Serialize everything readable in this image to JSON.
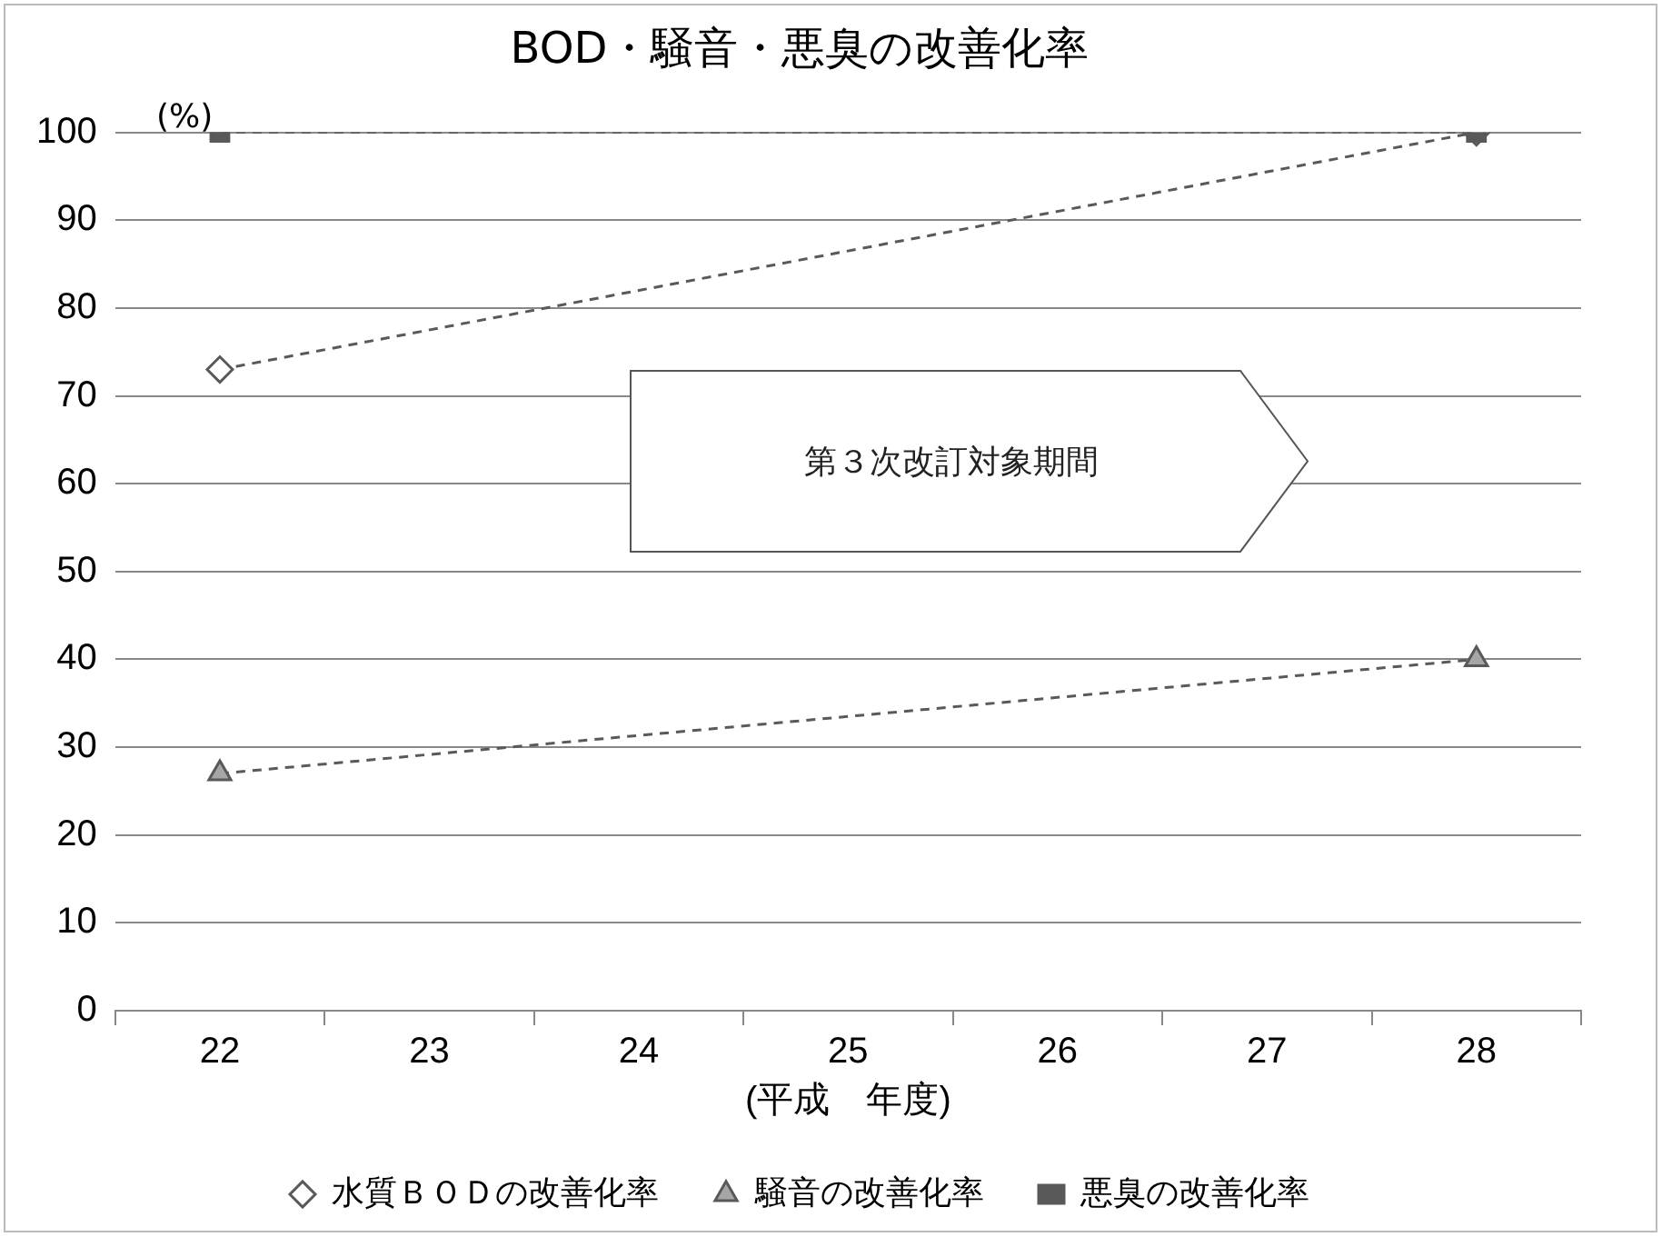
{
  "chart_data": {
    "type": "line",
    "title": "BOD・騒音・悪臭の改善化率",
    "ylabel": "(%)",
    "xlabel": "(平成　年度)",
    "categories": [
      "22",
      "23",
      "24",
      "25",
      "26",
      "27",
      "28"
    ],
    "series": [
      {
        "name": "水質ＢＯＤの改善化率",
        "color": "#595959",
        "values": [
          73,
          null,
          null,
          null,
          null,
          null,
          100
        ],
        "marker": "diamond"
      },
      {
        "name": "騒音の改善化率",
        "color": "#595959",
        "values": [
          27,
          null,
          null,
          null,
          null,
          null,
          40
        ],
        "marker": "triangle"
      },
      {
        "name": "悪臭の改善化率",
        "color": "#595959",
        "values": [
          100,
          null,
          null,
          null,
          null,
          null,
          100
        ],
        "marker": "square"
      }
    ],
    "ylim": [
      0,
      100
    ],
    "yticks": [
      0,
      10,
      20,
      30,
      40,
      50,
      60,
      70,
      80,
      90,
      100
    ],
    "grid": "y",
    "legend": "bottom",
    "line_style": "dashed",
    "annotations": [
      "第３次改訂対象期間"
    ]
  }
}
